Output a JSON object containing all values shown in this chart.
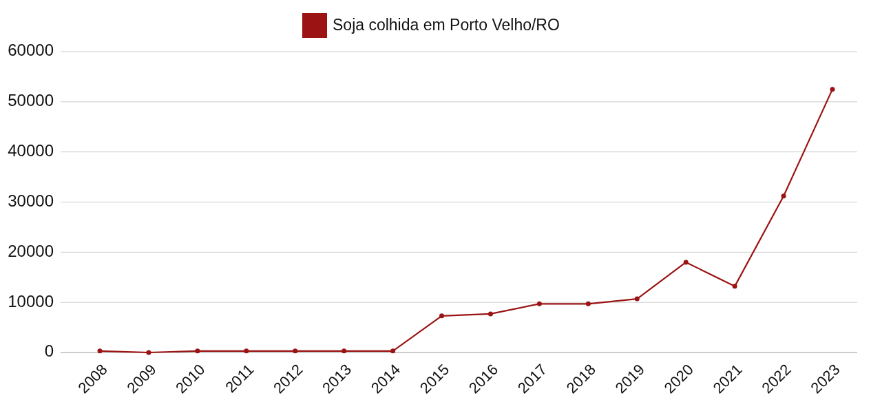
{
  "chart_data": {
    "type": "line",
    "categories": [
      "2008",
      "2009",
      "2010",
      "2011",
      "2012",
      "2013",
      "2014",
      "2015",
      "2016",
      "2017",
      "2018",
      "2019",
      "2020",
      "2021",
      "2022",
      "2023"
    ],
    "series": [
      {
        "name": "Soja colhida em Porto Velho/RO",
        "color": "#9b1313",
        "values": [
          300,
          0,
          300,
          300,
          300,
          300,
          300,
          7300,
          7700,
          9700,
          9700,
          10700,
          18000,
          13200,
          31200,
          52500
        ]
      }
    ],
    "ylim": [
      0,
      60000
    ],
    "yticks": [
      0,
      10000,
      20000,
      30000,
      40000,
      50000,
      60000
    ],
    "grid": "y",
    "legend": "top",
    "marker": "circle",
    "line_style": "solid"
  }
}
